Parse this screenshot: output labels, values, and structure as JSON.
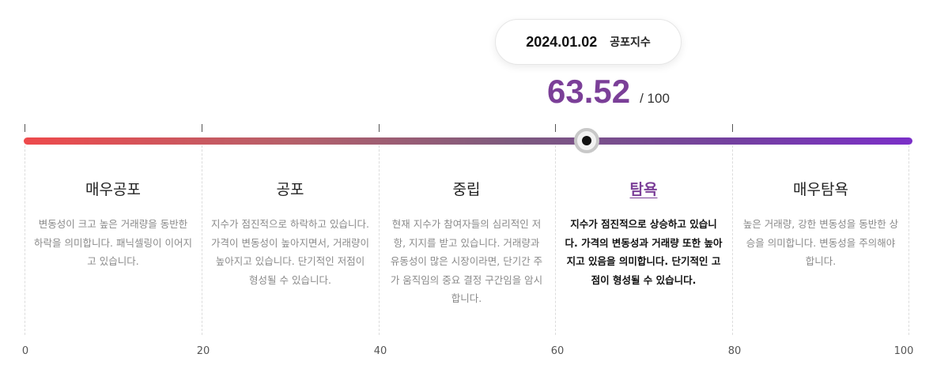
{
  "tooltip": {
    "date": "2024.01.02",
    "label": "공포지수"
  },
  "current": {
    "value": "63.52",
    "max": "/ 100"
  },
  "zones": [
    {
      "title": "매우공포",
      "desc": "변동성이 크고 높은 거래량을 동반한 하락을 의미합니다. 패닉셀링이 이어지고 있습니다.",
      "active": false
    },
    {
      "title": "공포",
      "desc": "지수가 점진적으로 하락하고 있습니다. 가격이 변동성이 높아지면서, 거래량이 높아지고 있습니다. 단기적인 저점이 형성될 수 있습니다.",
      "active": false
    },
    {
      "title": "중립",
      "desc": "현재 지수가 참여자들의 심리적인 저항, 지지를 받고 있습니다. 거래량과 유동성이 많은 시장이라면, 단기간 주가 움직임의 중요 결정 구간임을 암시합니다.",
      "active": false
    },
    {
      "title": "탐욕",
      "desc": "지수가 점진적으로 상승하고 있습니다. 가격의 변동성과 거래량 또한 높아지고 있음을 의미합니다. 단기적인 고점이 형성될 수 있습니다.",
      "active": true
    },
    {
      "title": "매우탐욕",
      "desc": "높은 거래량, 강한 변동성을 동반한 상승을 의미합니다. 변동성을 주의해야 합니다.",
      "active": false
    }
  ],
  "scale": [
    "0",
    "20",
    "40",
    "60",
    "80",
    "100"
  ],
  "colors": {
    "accent": "#7b3f98",
    "gradient_start": "#ee4a4c",
    "gradient_end": "#7b2fc8"
  }
}
